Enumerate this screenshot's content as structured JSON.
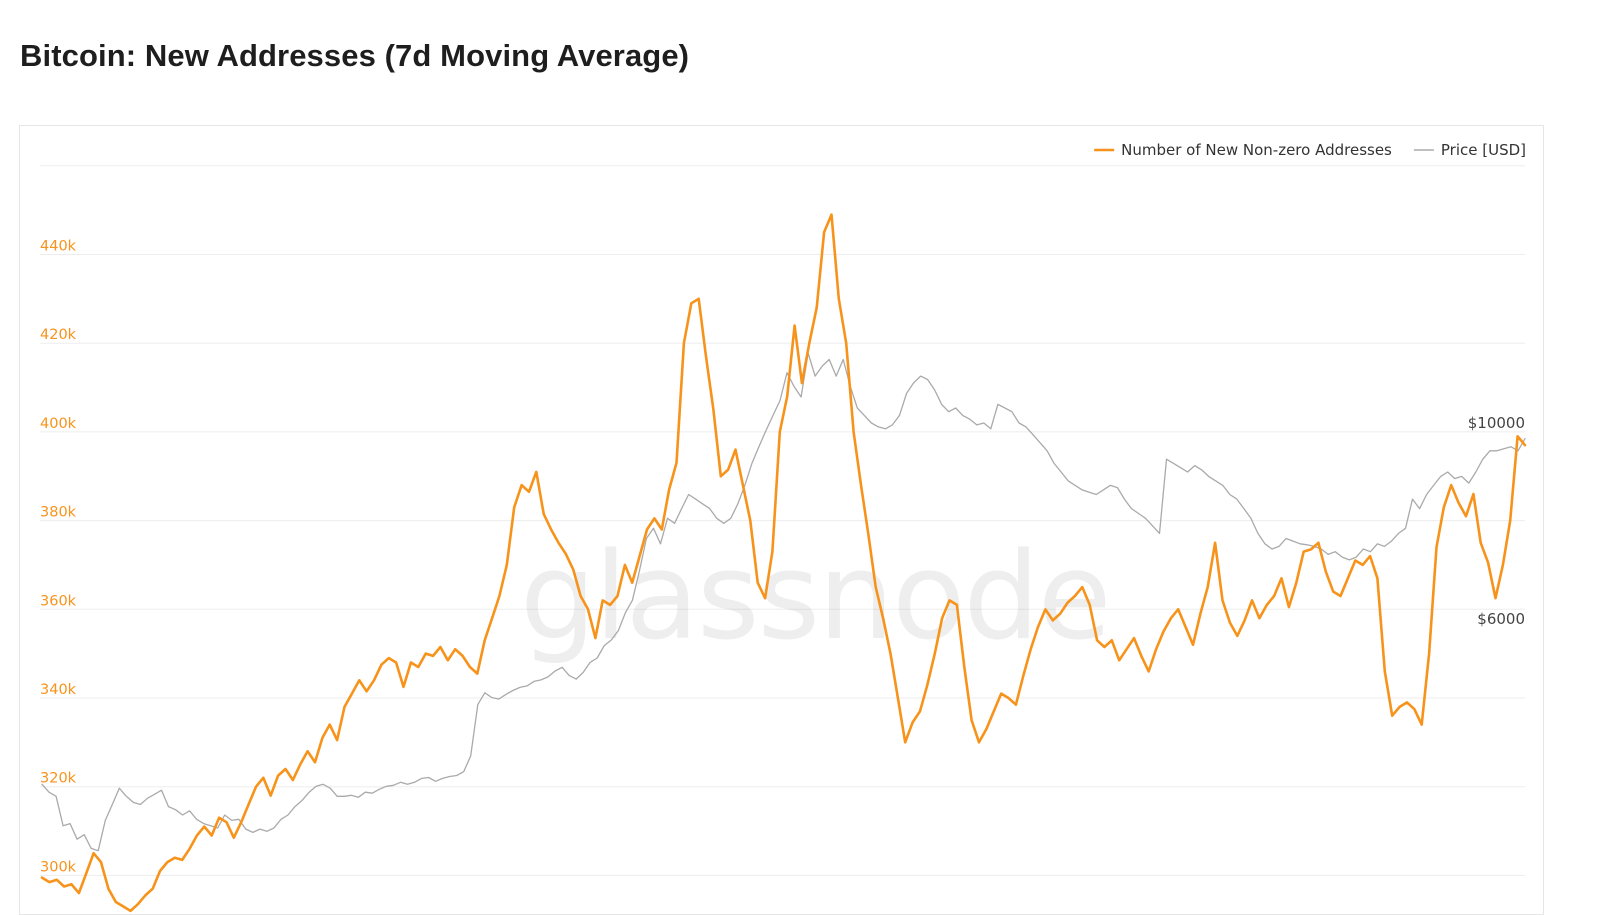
{
  "header": {
    "title": "Bitcoin: New Addresses (7d Moving Average)"
  },
  "watermark": "glassnode",
  "chart_data": {
    "type": "line",
    "title": "Bitcoin: New Addresses (7d Moving Average)",
    "xlabel": "",
    "ylabel": "",
    "grid": true,
    "legend_position": "top-right",
    "y_left": {
      "ticks": [
        300000,
        320000,
        340000,
        360000,
        380000,
        400000,
        420000,
        440000
      ],
      "tick_labels": [
        "300k",
        "320k",
        "340k",
        "360k",
        "380k",
        "400k",
        "420k",
        "440k"
      ],
      "range": [
        296000,
        460000
      ],
      "color": "#f7931a"
    },
    "y_right": {
      "scale": "log",
      "ticks": [
        6000,
        10000
      ],
      "tick_labels": [
        "$6000",
        "$10000"
      ],
      "color": "#444444"
    },
    "series": [
      {
        "name": "Number of New Non-zero Addresses",
        "axis": "left",
        "color": "#f7931a",
        "values": [
          299500,
          298500,
          299000,
          297500,
          298000,
          296000,
          300500,
          305000,
          303000,
          297000,
          294000,
          293000,
          292000,
          293500,
          295500,
          297000,
          301000,
          303000,
          304000,
          303500,
          306000,
          309000,
          311000,
          309000,
          313000,
          312000,
          308500,
          312000,
          316000,
          320000,
          322000,
          318000,
          322500,
          324000,
          321500,
          325000,
          328000,
          325500,
          331000,
          334000,
          330500,
          338000,
          341000,
          344000,
          341500,
          344000,
          347500,
          349000,
          348000,
          342500,
          348000,
          347000,
          350000,
          349500,
          351500,
          348500,
          351000,
          349500,
          347000,
          345500,
          353000,
          358000,
          363000,
          370000,
          383000,
          388000,
          386500,
          391000,
          381500,
          378000,
          375000,
          372500,
          369000,
          363000,
          360000,
          353500,
          362000,
          361000,
          363000,
          370000,
          366000,
          372000,
          378000,
          380500,
          378000,
          387000,
          393000,
          420000,
          429000,
          430000,
          417000,
          405000,
          390000,
          391500,
          396000,
          388000,
          380000,
          366000,
          362500,
          373000,
          400000,
          408000,
          424000,
          411000,
          420000,
          428000,
          445000,
          449000,
          430000,
          420000,
          400000,
          388000,
          377000,
          365000,
          358000,
          350000,
          340000,
          330000,
          334500,
          337000,
          343000,
          350000,
          358000,
          362000,
          361000,
          347000,
          335000,
          330000,
          333000,
          337000,
          341000,
          340000,
          338500,
          345000,
          351000,
          356000,
          360000,
          357500,
          359000,
          361500,
          363000,
          365000,
          361000,
          353000,
          351500,
          353000,
          348500,
          351000,
          353500,
          349500,
          346000,
          351000,
          355000,
          358000,
          360000,
          356000,
          352000,
          359000,
          365000,
          375000,
          362000,
          357000,
          354000,
          357500,
          362000,
          358000,
          361000,
          363000,
          367000,
          360500,
          366000,
          373000,
          373500,
          375000,
          368500,
          364000,
          363000,
          367000,
          371000,
          370000,
          372000,
          367000,
          346000,
          336000,
          338000,
          339000,
          337500,
          334000,
          350000,
          374000,
          383000,
          388000,
          384000,
          381000,
          386000,
          375000,
          370500,
          362500,
          370000,
          380000,
          399000,
          397000
        ]
      },
      {
        "name": "Price [USD]",
        "axis": "right",
        "color": "#aaaaaa",
        "values": [
          3900,
          3820,
          3780,
          3500,
          3520,
          3380,
          3420,
          3300,
          3280,
          3550,
          3700,
          3860,
          3780,
          3720,
          3700,
          3760,
          3800,
          3840,
          3680,
          3650,
          3600,
          3640,
          3560,
          3520,
          3500,
          3480,
          3600,
          3550,
          3560,
          3470,
          3440,
          3470,
          3450,
          3480,
          3560,
          3600,
          3680,
          3740,
          3820,
          3880,
          3900,
          3860,
          3780,
          3780,
          3790,
          3770,
          3820,
          3810,
          3850,
          3880,
          3890,
          3920,
          3900,
          3920,
          3960,
          3970,
          3930,
          3960,
          3980,
          3990,
          4030,
          4200,
          4800,
          4950,
          4890,
          4870,
          4930,
          4980,
          5020,
          5040,
          5100,
          5120,
          5160,
          5240,
          5290,
          5180,
          5130,
          5220,
          5360,
          5420,
          5600,
          5680,
          5820,
          6100,
          6300,
          6800,
          7400,
          7600,
          7300,
          7800,
          7700,
          8000,
          8300,
          8200,
          8100,
          8000,
          7800,
          7700,
          7800,
          8100,
          8500,
          9000,
          9400,
          9800,
          10200,
          10600,
          11400,
          11000,
          10700,
          12000,
          11300,
          11600,
          11800,
          11300,
          11800,
          11000,
          10400,
          10200,
          10000,
          9900,
          9850,
          9950,
          10200,
          10800,
          11100,
          11300,
          11200,
          10900,
          10500,
          10300,
          10400,
          10200,
          10100,
          9950,
          10000,
          9850,
          10500,
          10400,
          10300,
          10000,
          9900,
          9700,
          9500,
          9300,
          9000,
          8800,
          8600,
          8500,
          8400,
          8350,
          8300,
          8400,
          8500,
          8450,
          8200,
          8000,
          7900,
          7800,
          7650,
          7500,
          9100,
          9000,
          8900,
          8800,
          8950,
          8850,
          8700,
          8600,
          8500,
          8300,
          8200,
          8000,
          7800,
          7500,
          7300,
          7200,
          7250,
          7400,
          7350,
          7300,
          7280,
          7250,
          7200,
          7100,
          7150,
          7050,
          7000,
          7050,
          7200,
          7150,
          7300,
          7250,
          7350,
          7500,
          7600,
          8200,
          8000,
          8300,
          8500,
          8700,
          8800,
          8650,
          8700,
          8550,
          8800,
          9100,
          9300,
          9300,
          9350,
          9400,
          9300,
          9600
        ]
      }
    ]
  }
}
